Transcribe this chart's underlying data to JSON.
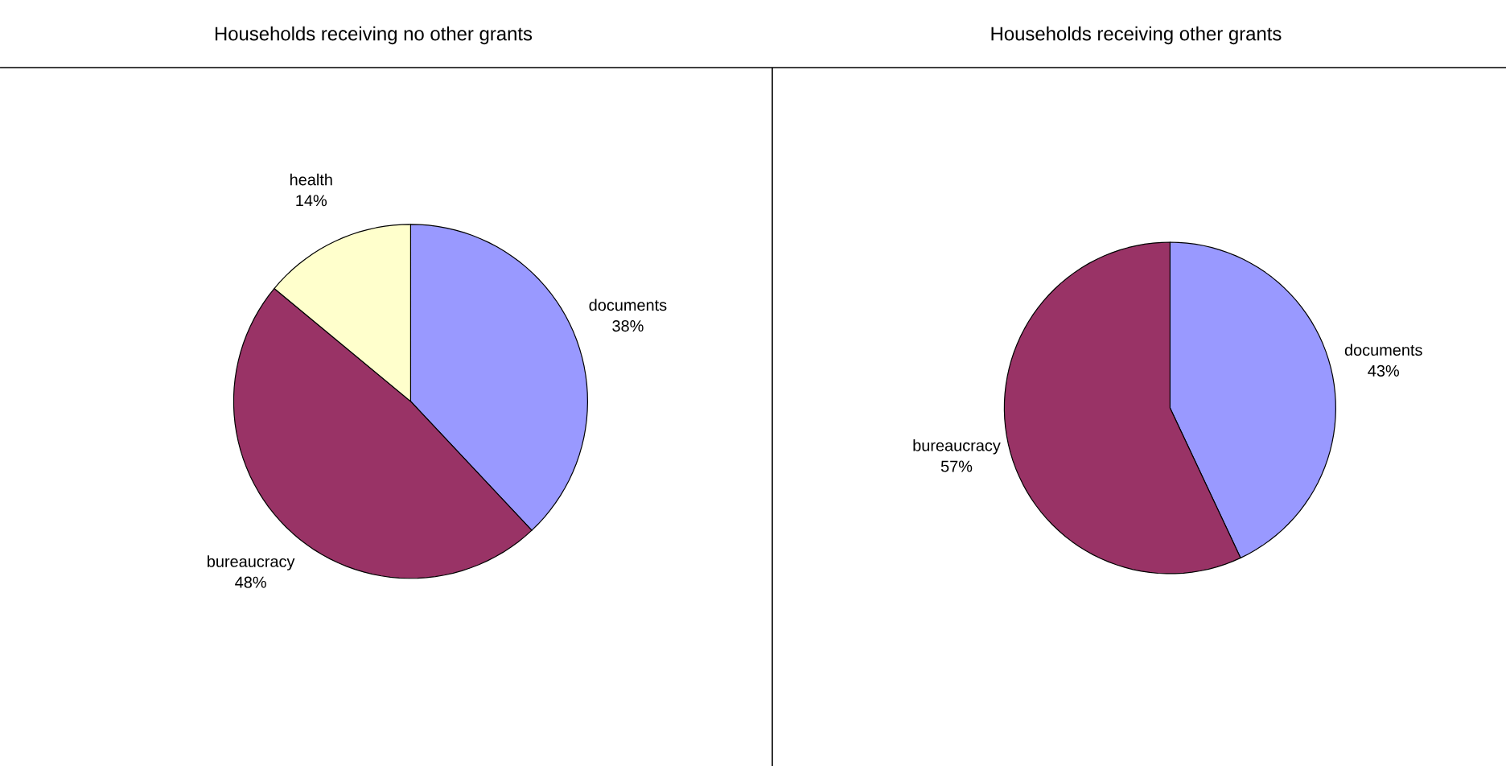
{
  "chart_data": [
    {
      "type": "pie",
      "title": "Households receiving no other grants",
      "categories": [
        "documents",
        "bureaucracy",
        "health"
      ],
      "values": [
        38,
        48,
        14
      ],
      "value_labels": [
        "38%",
        "48%",
        "14%"
      ],
      "colors": [
        "#9999ff",
        "#993366",
        "#ffffcc"
      ]
    },
    {
      "type": "pie",
      "title": "Households receiving other grants",
      "categories": [
        "documents",
        "bureaucracy"
      ],
      "values": [
        43,
        57
      ],
      "value_labels": [
        "43%",
        "57%"
      ],
      "colors": [
        "#9999ff",
        "#993366"
      ]
    }
  ]
}
